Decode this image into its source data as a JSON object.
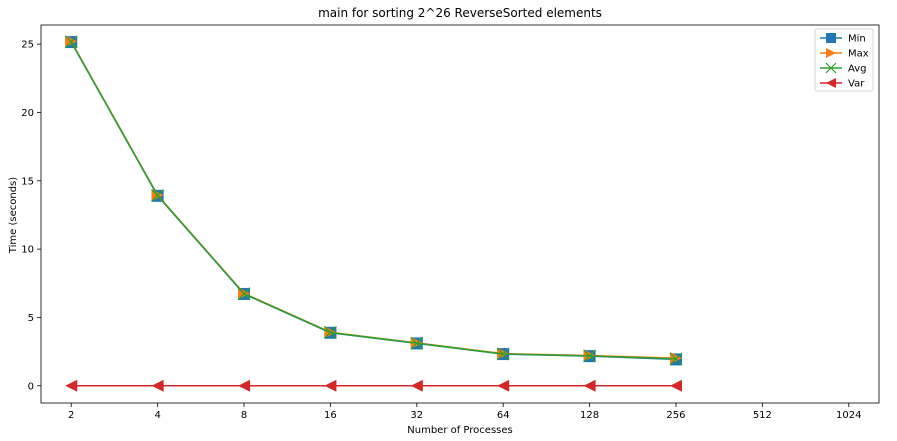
{
  "chart_data": {
    "type": "line",
    "title": "main for sorting 2^26 ReverseSorted elements",
    "xlabel": "Number of Processes",
    "ylabel": "Time (seconds)",
    "x_scale": "log2",
    "x_ticks": [
      "2",
      "4",
      "8",
      "16",
      "32",
      "64",
      "128",
      "256",
      "512",
      "1024"
    ],
    "x": [
      2,
      4,
      8,
      16,
      32,
      64,
      128,
      256
    ],
    "y_ticks": [
      "0",
      "5",
      "10",
      "15",
      "20",
      "25"
    ],
    "ylim": [
      -1.26,
      26.4
    ],
    "grid": false,
    "legend_position": "top-right",
    "series": [
      {
        "name": "Min",
        "marker": "square",
        "color": "#1f77b4",
        "values": [
          25.15,
          13.9,
          6.72,
          3.88,
          3.1,
          2.32,
          2.17,
          1.93
        ]
      },
      {
        "name": "Max",
        "marker": "triangle-right",
        "color": "#ff7f0e",
        "values": [
          25.2,
          13.95,
          6.76,
          3.92,
          3.14,
          2.35,
          2.22,
          2.02
        ]
      },
      {
        "name": "Avg",
        "marker": "x",
        "color": "#2ca02c",
        "values": [
          25.17,
          13.92,
          6.74,
          3.9,
          3.12,
          2.33,
          2.19,
          1.97
        ]
      },
      {
        "name": "Var",
        "marker": "triangle-left",
        "color": "#d62728",
        "values": [
          0,
          0,
          0,
          0,
          0,
          0,
          0,
          0
        ]
      }
    ]
  }
}
